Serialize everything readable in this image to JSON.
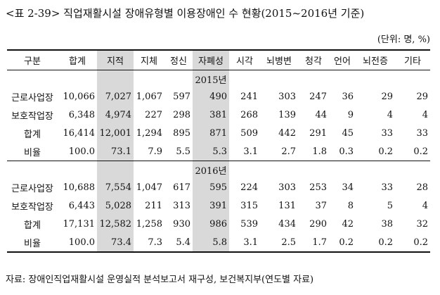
{
  "title": "<표 2-39> 직업재활시설 장애유형별 이용장애인 수 현황(2015~2016년 기준)",
  "unit": "(단위: 명, %)",
  "columns": [
    "구분",
    "합계",
    "지적",
    "지체",
    "정신",
    "자폐성",
    "시각",
    "뇌병변",
    "청각",
    "언어",
    "뇌전증",
    "기타"
  ],
  "highlight_columns": [
    "지적",
    "자폐성"
  ],
  "sections": [
    {
      "year": "2015년",
      "rows": [
        {
          "label": "근로사업장",
          "values": [
            "10,066",
            "7,027",
            "1,067",
            "597",
            "490",
            "241",
            "303",
            "247",
            "36",
            "29",
            "29"
          ]
        },
        {
          "label": "보호작업장",
          "values": [
            "6,348",
            "4,974",
            "227",
            "298",
            "381",
            "268",
            "139",
            "44",
            "9",
            "4",
            "4"
          ]
        },
        {
          "label": "합계",
          "values": [
            "16,414",
            "12,001",
            "1,294",
            "895",
            "871",
            "509",
            "442",
            "291",
            "45",
            "33",
            "33"
          ]
        },
        {
          "label": "비율",
          "values": [
            "100.0",
            "73.1",
            "7.9",
            "5.5",
            "5.3",
            "3.1",
            "2.7",
            "1.8",
            "0.3",
            "0.2",
            "0.2"
          ]
        }
      ]
    },
    {
      "year": "2016년",
      "rows": [
        {
          "label": "근로사업장",
          "values": [
            "10,688",
            "7,554",
            "1,047",
            "617",
            "595",
            "224",
            "303",
            "253",
            "34",
            "33",
            "28"
          ]
        },
        {
          "label": "보호작업장",
          "values": [
            "6,443",
            "5,028",
            "211",
            "313",
            "391",
            "315",
            "131",
            "37",
            "8",
            "5",
            "4"
          ]
        },
        {
          "label": "합계",
          "values": [
            "17,131",
            "12,582",
            "1,258",
            "930",
            "986",
            "539",
            "434",
            "290",
            "42",
            "38",
            "32"
          ]
        },
        {
          "label": "비율",
          "values": [
            "100.0",
            "73.4",
            "7.3",
            "5.4",
            "5.8",
            "3.1",
            "2.5",
            "1.7",
            "0.2",
            "0.2",
            "0.2"
          ]
        }
      ]
    }
  ],
  "source": "자료: 장애인직업재활시설 운영실적 분석보고서 재구성, 보건복지부(연도별 자료)",
  "colors": {
    "highlight": "#d9d9d9",
    "rule": "#111111"
  }
}
